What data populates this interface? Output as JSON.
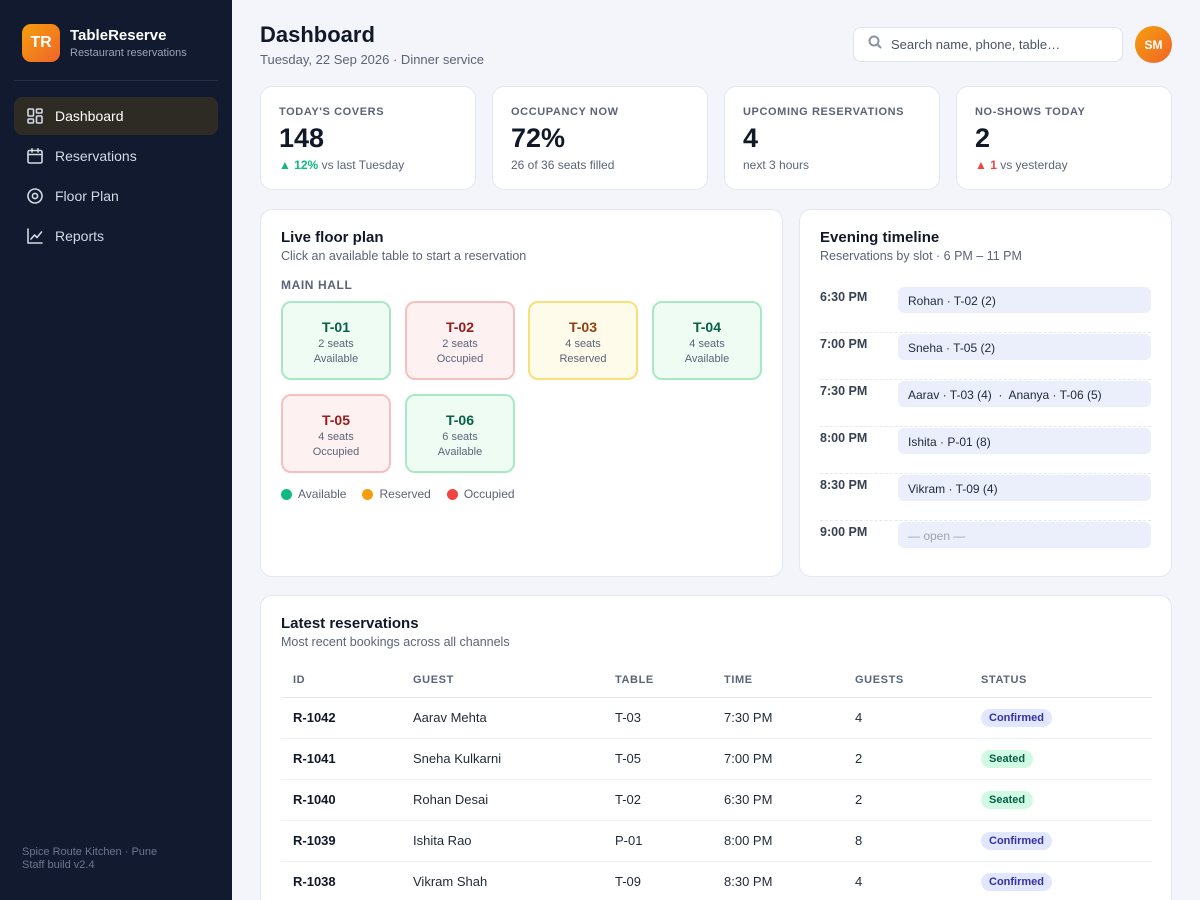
{
  "app": {
    "logo": "TR",
    "name": "TableReserve",
    "subtitle": "Restaurant reservations"
  },
  "sidebar": {
    "items": [
      {
        "label": "Dashboard",
        "icon": "dashboard-icon",
        "active": true
      },
      {
        "label": "Reservations",
        "icon": "calendar-icon",
        "active": false
      },
      {
        "label": "Floor Plan",
        "icon": "floor-plan-icon",
        "active": false
      },
      {
        "label": "Reports",
        "icon": "chart-icon",
        "active": false
      }
    ],
    "footer_line1": "Spice Route Kitchen · Pune",
    "footer_line2": "Staff build v2.4"
  },
  "header": {
    "title": "Dashboard",
    "subtitle": "Tuesday, 22 Sep 2026 · Dinner service",
    "search_placeholder": "Search name, phone, table…",
    "avatar_initials": "SM"
  },
  "stats": [
    {
      "label": "TODAY'S COVERS",
      "value": "148",
      "delta": "▲ 12%",
      "note": " vs last Tuesday"
    },
    {
      "label": "OCCUPANCY NOW",
      "value": "72%",
      "note": "26 of 36 seats filled"
    },
    {
      "label": "UPCOMING RESERVATIONS",
      "value": "4",
      "note": "next 3 hours"
    },
    {
      "label": "NO-SHOWS TODAY",
      "value": "2",
      "delta": "▲ 1",
      "note": " vs yesterday"
    }
  ],
  "floor": {
    "title": "Live floor plan",
    "subtitle": "Click an available table to start a reservation",
    "zone": "MAIN HALL",
    "tables": [
      {
        "id": "T-01",
        "seats": "2 seats",
        "status": "Available"
      },
      {
        "id": "T-02",
        "seats": "2 seats",
        "status": "Occupied"
      },
      {
        "id": "T-03",
        "seats": "4 seats",
        "status": "Reserved"
      },
      {
        "id": "T-04",
        "seats": "4 seats",
        "status": "Available"
      },
      {
        "id": "T-05",
        "seats": "4 seats",
        "status": "Occupied"
      },
      {
        "id": "T-06",
        "seats": "6 seats",
        "status": "Available"
      }
    ],
    "legend": [
      {
        "label": "Available",
        "color": "#10b981"
      },
      {
        "label": "Reserved",
        "color": "#f59e0b"
      },
      {
        "label": "Occupied",
        "color": "#ef4444"
      }
    ]
  },
  "timeline": {
    "title": "Evening timeline",
    "subtitle": "Reservations by slot · 6 PM – 11 PM",
    "slots": [
      {
        "time": "6:30 PM",
        "text": "Rohan · T-02 (2)"
      },
      {
        "time": "7:00 PM",
        "text": "Sneha · T-05 (2)"
      },
      {
        "time": "7:30 PM",
        "text": "Aarav · T-03 (4)  ·  Ananya · T-06 (5)"
      },
      {
        "time": "8:00 PM",
        "text": "Ishita · P-01 (8)"
      },
      {
        "time": "8:30 PM",
        "text": "Vikram · T-09 (4)"
      },
      {
        "time": "9:00 PM",
        "text": "— open —"
      }
    ]
  },
  "latest": {
    "title": "Latest reservations",
    "subtitle": "Most recent bookings across all channels",
    "columns": [
      "ID",
      "GUEST",
      "TABLE",
      "TIME",
      "GUESTS",
      "STATUS"
    ],
    "rows": [
      {
        "id": "R-1042",
        "guest": "Aarav Mehta",
        "table": "T-03",
        "time": "7:30 PM",
        "guests": "4",
        "status": "Confirmed"
      },
      {
        "id": "R-1041",
        "guest": "Sneha Kulkarni",
        "table": "T-05",
        "time": "7:00 PM",
        "guests": "2",
        "status": "Seated"
      },
      {
        "id": "R-1040",
        "guest": "Rohan Desai",
        "table": "T-02",
        "time": "6:30 PM",
        "guests": "2",
        "status": "Seated"
      },
      {
        "id": "R-1039",
        "guest": "Ishita Rao",
        "table": "P-01",
        "time": "8:00 PM",
        "guests": "8",
        "status": "Confirmed"
      },
      {
        "id": "R-1038",
        "guest": "Vikram Shah",
        "table": "T-09",
        "time": "8:30 PM",
        "guests": "4",
        "status": "Confirmed"
      }
    ]
  }
}
